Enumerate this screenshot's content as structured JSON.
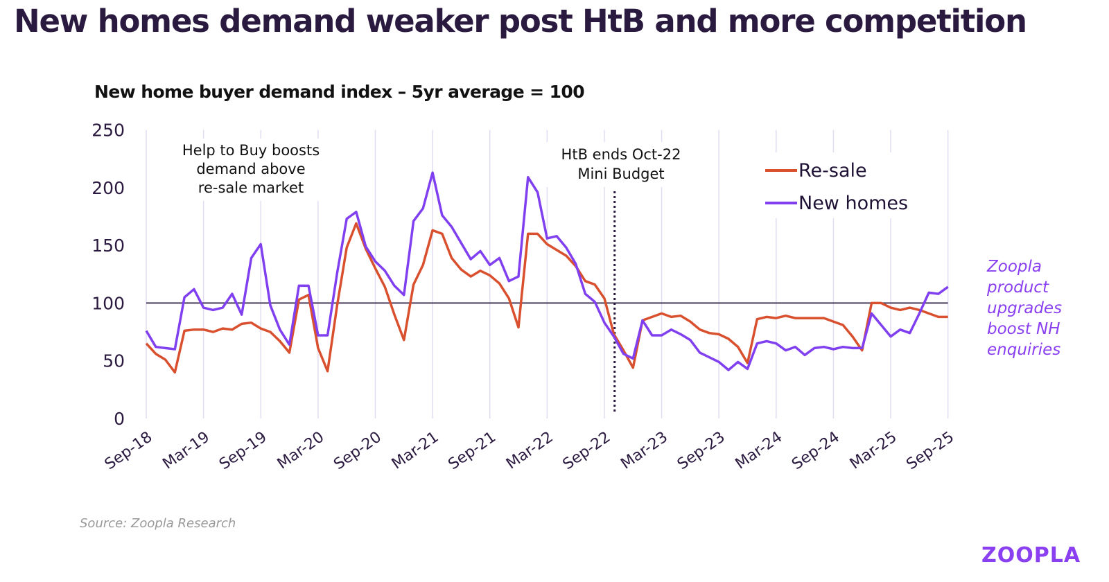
{
  "title": "New homes demand weaker post HtB and more competition",
  "side_note": "Zoopla product upgrades boost NH enquiries",
  "source": "Source:  Zoopla Research",
  "logo": "ZOOPLA",
  "colors": {
    "resale": "#d9502e",
    "new_homes": "#8040f0",
    "reference_line": "#4a3d5c",
    "grid": "#e2dcf2"
  },
  "chart_data": {
    "type": "line",
    "title": "New home buyer demand index – 5yr average = 100",
    "xlabel": "",
    "ylabel": "",
    "ylim": [
      0,
      250
    ],
    "yticks": [
      0,
      50,
      100,
      150,
      200,
      250
    ],
    "x_tick_labels": [
      "Sep-18",
      "Mar-19",
      "Sep-19",
      "Mar-20",
      "Sep-20",
      "Mar-21",
      "Sep-21",
      "Mar-22",
      "Sep-22",
      "Mar-23",
      "Sep-23",
      "Mar-24",
      "Sep-24",
      "Mar-25",
      "Sep-25"
    ],
    "x_start": "Sep-18",
    "x_end": "Sep-25",
    "frequency": "monthly",
    "grid": "vertical",
    "reference_line": 100,
    "legend": {
      "placement": "top-right",
      "entries": [
        "Re-sale",
        "New homes"
      ]
    },
    "annotations": [
      {
        "text": [
          "Help to Buy boosts",
          "demand above",
          "re-sale market"
        ],
        "at": "Dec-19"
      },
      {
        "text": [
          "HtB ends Oct-22",
          "Mini Budget"
        ],
        "at": "Oct-22",
        "dotted_line": true
      }
    ],
    "series": [
      {
        "name": "Re-sale",
        "values": [
          65,
          56,
          51,
          40,
          76,
          77,
          77,
          75,
          78,
          77,
          82,
          83,
          78,
          75,
          67,
          57,
          103,
          107,
          61,
          41,
          98,
          148,
          169,
          147,
          130,
          114,
          90,
          68,
          116,
          133,
          163,
          160,
          139,
          129,
          123,
          128,
          124,
          117,
          104,
          79,
          160,
          160,
          151,
          146,
          141,
          132,
          119,
          116,
          104,
          73,
          59,
          44,
          85,
          88,
          91,
          88,
          89,
          84,
          77,
          74,
          73,
          69,
          62,
          48,
          86,
          88,
          87,
          89,
          87,
          87,
          87,
          87,
          84,
          81,
          71,
          59,
          100,
          100,
          96,
          94,
          96,
          94,
          91,
          88,
          88
        ]
      },
      {
        "name": "New homes",
        "values": [
          76,
          62,
          61,
          60,
          105,
          112,
          96,
          94,
          96,
          108,
          90,
          139,
          151,
          98,
          77,
          64,
          115,
          115,
          72,
          72,
          126,
          173,
          179,
          149,
          136,
          128,
          115,
          107,
          171,
          182,
          213,
          176,
          166,
          152,
          138,
          145,
          133,
          139,
          119,
          123,
          209,
          196,
          156,
          158,
          148,
          134,
          108,
          101,
          83,
          71,
          56,
          52,
          85,
          72,
          72,
          77,
          73,
          68,
          57,
          53,
          49,
          42,
          49,
          43,
          65,
          67,
          65,
          59,
          62,
          55,
          61,
          62,
          60,
          62,
          61,
          61,
          91,
          81,
          71,
          77,
          74,
          91,
          109,
          108,
          114
        ]
      }
    ]
  }
}
